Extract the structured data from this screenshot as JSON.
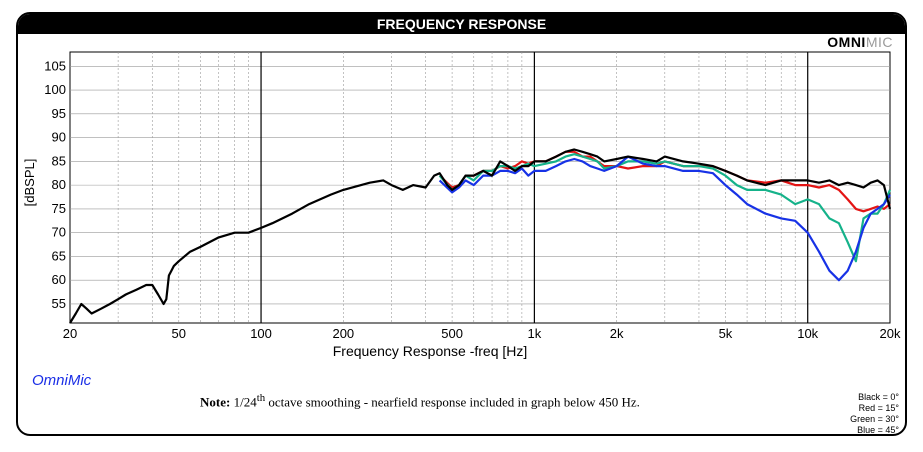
{
  "title": "FREQUENCY RESPONSE",
  "brand": {
    "part1": "OMNI",
    "part2": "MIC"
  },
  "omnimic_label": "OmniMic",
  "note": {
    "label": "Note:",
    "prefix": "1/24",
    "sup": "th",
    "text": " octave smoothing - nearfield response included in graph below 450 Hz."
  },
  "legend_key": [
    "Black = 0°",
    "Red = 15°",
    "Green = 30°",
    "Blue = 45°"
  ],
  "colors": {
    "black": "#000000",
    "red": "#e31414",
    "green": "#15b28a",
    "blue": "#1732e6",
    "grid": "#9a9a9a",
    "major_grid": "#000000"
  },
  "chart_data": {
    "type": "line",
    "title": "FREQUENCY RESPONSE",
    "xlabel": "Frequency Response -freq [Hz]",
    "ylabel": "[dBSPL]",
    "x_scale": "log",
    "xlim": [
      20,
      20000
    ],
    "ylim": [
      51,
      108
    ],
    "x_ticks": [
      20,
      50,
      100,
      200,
      500,
      1000,
      2000,
      5000,
      10000,
      20000
    ],
    "x_tick_labels": [
      "20",
      "50",
      "100",
      "200",
      "500",
      "1k",
      "2k",
      "5k",
      "10k",
      "20k"
    ],
    "y_ticks": [
      55,
      60,
      65,
      70,
      75,
      80,
      85,
      90,
      95,
      100,
      105
    ],
    "grid": true,
    "series": [
      {
        "name": "Black = 0°",
        "color": "#000000",
        "x": [
          20,
          21,
          22,
          23,
          24,
          26,
          28,
          30,
          32,
          35,
          38,
          40,
          42,
          44,
          45,
          46,
          47,
          48,
          50,
          55,
          60,
          70,
          80,
          90,
          100,
          110,
          130,
          150,
          180,
          200,
          250,
          280,
          300,
          330,
          360,
          400,
          430,
          450,
          480,
          500,
          530,
          560,
          600,
          650,
          700,
          750,
          800,
          850,
          900,
          950,
          1000,
          1100,
          1200,
          1300,
          1400,
          1500,
          1600,
          1700,
          1800,
          2000,
          2200,
          2500,
          2800,
          3000,
          3500,
          4000,
          4500,
          5000,
          5500,
          6000,
          7000,
          8000,
          9000,
          10000,
          11000,
          12000,
          13000,
          14000,
          15000,
          16000,
          17000,
          18000,
          19000,
          20000
        ],
        "values": [
          51,
          53,
          55,
          54,
          53,
          54,
          55,
          56,
          57,
          58,
          59,
          59,
          57,
          55,
          56,
          61,
          62,
          63,
          64,
          66,
          67,
          69,
          70,
          70,
          71,
          72,
          74,
          76,
          78,
          79,
          80.5,
          81,
          80,
          79,
          80,
          79.5,
          82,
          82.5,
          80,
          79,
          80,
          82,
          82,
          83,
          82,
          85,
          84,
          83,
          84,
          84,
          85,
          85,
          86,
          87,
          87.5,
          87,
          86.5,
          86,
          85,
          85.5,
          86,
          85.5,
          85,
          86,
          85,
          84.5,
          84,
          83,
          82,
          81,
          80,
          81,
          81,
          81,
          80.5,
          81,
          80,
          80.5,
          80,
          79.5,
          80.5,
          81,
          80,
          75
        ]
      },
      {
        "name": "Red = 15°",
        "color": "#e31414",
        "x": [
          450,
          500,
          530,
          560,
          600,
          650,
          700,
          750,
          800,
          850,
          900,
          950,
          1000,
          1100,
          1200,
          1300,
          1400,
          1500,
          1600,
          1700,
          1800,
          2000,
          2200,
          2500,
          2800,
          3000,
          3500,
          4000,
          4500,
          5000,
          5500,
          6000,
          7000,
          8000,
          9000,
          10000,
          11000,
          12000,
          13000,
          14000,
          15000,
          16000,
          17000,
          18000,
          19000,
          20000
        ],
        "values": [
          82,
          79.5,
          80,
          82,
          82,
          83,
          83,
          84,
          83.5,
          84,
          85,
          84.5,
          85,
          85,
          86,
          87,
          87,
          86,
          86,
          85,
          84,
          84,
          83.5,
          84,
          84,
          85,
          84,
          84,
          84,
          83,
          82,
          81,
          80.5,
          81,
          80,
          80,
          79.5,
          80,
          79,
          77,
          75,
          74.5,
          75,
          75.5,
          75,
          76
        ]
      },
      {
        "name": "Green = 30°",
        "color": "#15b28a",
        "x": [
          450,
          500,
          530,
          560,
          600,
          650,
          700,
          750,
          800,
          850,
          900,
          950,
          1000,
          1100,
          1200,
          1300,
          1400,
          1500,
          1600,
          1700,
          1800,
          2000,
          2200,
          2500,
          2800,
          3000,
          3500,
          4000,
          4500,
          5000,
          5500,
          6000,
          7000,
          8000,
          9000,
          10000,
          11000,
          12000,
          13000,
          14000,
          15000,
          16000,
          17000,
          18000,
          19000,
          20000
        ],
        "values": [
          82,
          79,
          80,
          82,
          81,
          83,
          83,
          84,
          84,
          83.5,
          84,
          84.5,
          84,
          84.5,
          85,
          86,
          86.5,
          86,
          85.5,
          85,
          83.5,
          84,
          85,
          85,
          84.5,
          85,
          84,
          84,
          83.5,
          82,
          80,
          79,
          79,
          78,
          76,
          77,
          76,
          73,
          72,
          68,
          64,
          73,
          74,
          74,
          76,
          79
        ]
      },
      {
        "name": "Blue = 45°",
        "color": "#1732e6",
        "x": [
          450,
          500,
          530,
          560,
          600,
          650,
          700,
          750,
          800,
          850,
          900,
          950,
          1000,
          1100,
          1200,
          1300,
          1400,
          1500,
          1600,
          1700,
          1800,
          2000,
          2200,
          2500,
          2800,
          3000,
          3500,
          4000,
          4500,
          5000,
          5500,
          6000,
          7000,
          8000,
          9000,
          10000,
          11000,
          12000,
          13000,
          14000,
          15000,
          16000,
          17000,
          18000,
          19000,
          20000
        ],
        "values": [
          81,
          78.5,
          79.5,
          81,
          80,
          82,
          82,
          83,
          83,
          82.5,
          83.5,
          82,
          83,
          83,
          84,
          85,
          85.5,
          85,
          84,
          83.5,
          83,
          84,
          86,
          84.5,
          84,
          84,
          83,
          83,
          82.5,
          80,
          78,
          76,
          74,
          73,
          72.5,
          70,
          66,
          62,
          60,
          62,
          66,
          71,
          74,
          75,
          76,
          78
        ]
      }
    ]
  }
}
